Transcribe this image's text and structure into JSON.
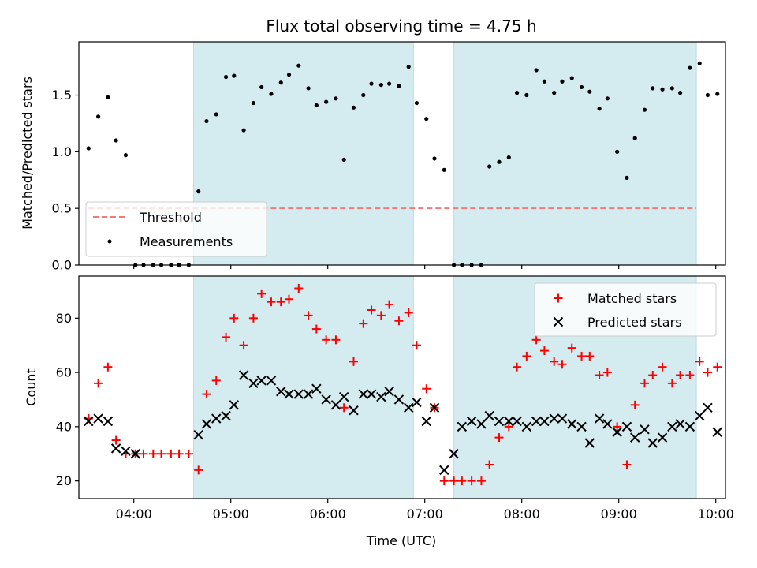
{
  "colors": {
    "shade": "#d4ebf0",
    "threshold": "#f27a7a",
    "measurement": "#000000",
    "matched": "#ff0000",
    "predicted": "#000000"
  },
  "chart_data": [
    {
      "type": "scatter",
      "title": "Flux total observing time = 4.75 h",
      "xlabel": "",
      "ylabel": "Matched/Predicted stars",
      "x_unit": "hours UTC",
      "xlim": [
        "03:26",
        "10:06"
      ],
      "ylim": [
        0,
        1.97
      ],
      "yticks": [
        0.0,
        0.5,
        1.0,
        1.5
      ],
      "ytick_labels": [
        "0.0",
        "0.5",
        "1.0",
        "1.5"
      ],
      "xticks": [
        "04:00",
        "05:00",
        "06:00",
        "07:00",
        "08:00",
        "09:00",
        "10:00"
      ],
      "shaded_intervals": [
        [
          "04:37",
          "06:53"
        ],
        [
          "07:18",
          "09:48"
        ]
      ],
      "grid": false,
      "legend_position": "lower-left",
      "series": [
        {
          "name": "Threshold",
          "style": "dashed-line",
          "x": [
            "03:32",
            "09:48"
          ],
          "y": [
            0.5,
            0.5
          ]
        },
        {
          "name": "Measurements",
          "style": "dot",
          "x": [
            "03:32",
            "03:38",
            "03:44",
            "03:49",
            "03:55",
            "04:01",
            "04:06",
            "04:12",
            "04:17",
            "04:23",
            "04:28",
            "04:34",
            "04:40",
            "04:45",
            "04:51",
            "04:57",
            "05:02",
            "05:08",
            "05:14",
            "05:19",
            "05:25",
            "05:31",
            "05:36",
            "05:42",
            "05:48",
            "05:53",
            "05:59",
            "06:05",
            "06:10",
            "06:16",
            "06:22",
            "06:27",
            "06:33",
            "06:38",
            "06:44",
            "06:50",
            "06:55",
            "07:01",
            "07:06",
            "07:12",
            "07:18",
            "07:23",
            "07:29",
            "07:35",
            "07:40",
            "07:46",
            "07:52",
            "07:57",
            "08:03",
            "08:09",
            "08:14",
            "08:20",
            "08:25",
            "08:31",
            "08:37",
            "08:42",
            "08:48",
            "08:53",
            "08:59",
            "09:05",
            "09:10",
            "09:16",
            "09:21",
            "09:27",
            "09:33",
            "09:38",
            "09:44",
            "09:50",
            "09:55",
            "10:01"
          ],
          "y": [
            1.03,
            1.31,
            1.48,
            1.1,
            0.97,
            0.0,
            0.0,
            0.0,
            0.0,
            0.0,
            0.0,
            0.0,
            0.65,
            1.27,
            1.33,
            1.66,
            1.67,
            1.19,
            1.43,
            1.57,
            1.51,
            1.61,
            1.68,
            1.76,
            1.56,
            1.41,
            1.44,
            1.47,
            0.93,
            1.39,
            1.5,
            1.6,
            1.59,
            1.6,
            1.58,
            1.75,
            1.43,
            1.29,
            0.94,
            0.84,
            0.0,
            0.0,
            0.0,
            0.0,
            0.87,
            0.91,
            0.95,
            1.52,
            1.5,
            1.72,
            1.62,
            1.52,
            1.62,
            1.65,
            1.57,
            1.53,
            1.38,
            1.47,
            1.0,
            0.77,
            1.12,
            1.37,
            1.56,
            1.55,
            1.56,
            1.52,
            1.74,
            1.78,
            1.5,
            1.51
          ]
        }
      ]
    },
    {
      "type": "scatter",
      "title": "",
      "xlabel": "Time (UTC)",
      "ylabel": "Count",
      "x_unit": "hours UTC",
      "xlim": [
        "03:26",
        "10:06"
      ],
      "ylim": [
        13.5,
        95.5
      ],
      "yticks": [
        20,
        40,
        60,
        80
      ],
      "ytick_labels": [
        "20",
        "40",
        "60",
        "80"
      ],
      "xticks": [
        "04:00",
        "05:00",
        "06:00",
        "07:00",
        "08:00",
        "09:00",
        "10:00"
      ],
      "xtick_labels": [
        "04:00",
        "05:00",
        "06:00",
        "07:00",
        "08:00",
        "09:00",
        "10:00"
      ],
      "shaded_intervals": [
        [
          "04:37",
          "06:53"
        ],
        [
          "07:18",
          "09:48"
        ]
      ],
      "grid": false,
      "legend_position": "upper-right",
      "series": [
        {
          "name": "Matched stars",
          "marker": "plus",
          "x": [
            "03:32",
            "03:38",
            "03:44",
            "03:49",
            "03:55",
            "04:01",
            "04:06",
            "04:12",
            "04:17",
            "04:23",
            "04:28",
            "04:34",
            "04:40",
            "04:45",
            "04:51",
            "04:57",
            "05:02",
            "05:08",
            "05:14",
            "05:19",
            "05:25",
            "05:31",
            "05:36",
            "05:42",
            "05:48",
            "05:53",
            "05:59",
            "06:05",
            "06:10",
            "06:16",
            "06:22",
            "06:27",
            "06:33",
            "06:38",
            "06:44",
            "06:50",
            "06:55",
            "07:01",
            "07:06",
            "07:12",
            "07:18",
            "07:23",
            "07:29",
            "07:35",
            "07:40",
            "07:46",
            "07:52",
            "07:57",
            "08:03",
            "08:09",
            "08:14",
            "08:20",
            "08:25",
            "08:31",
            "08:37",
            "08:42",
            "08:48",
            "08:53",
            "08:59",
            "09:05",
            "09:10",
            "09:16",
            "09:21",
            "09:27",
            "09:33",
            "09:38",
            "09:44",
            "09:50",
            "09:55",
            "10:01"
          ],
          "y": [
            43,
            56,
            62,
            35,
            30,
            30,
            30,
            30,
            30,
            30,
            30,
            30,
            24,
            52,
            57,
            73,
            80,
            70,
            80,
            89,
            86,
            86,
            87,
            91,
            81,
            76,
            72,
            72,
            47,
            64,
            78,
            83,
            81,
            85,
            79,
            82,
            70,
            54,
            47,
            20,
            20,
            20,
            20,
            20,
            26,
            36,
            40,
            62,
            66,
            72,
            68,
            64,
            63,
            69,
            66,
            66,
            59,
            60,
            40,
            26,
            48,
            56,
            59,
            62,
            56,
            59,
            59,
            64,
            60,
            62
          ]
        },
        {
          "name": "Predicted stars",
          "marker": "x",
          "x": [
            "03:32",
            "03:38",
            "03:44",
            "03:49",
            "03:55",
            "04:01",
            "04:40",
            "04:45",
            "04:51",
            "04:57",
            "05:02",
            "05:08",
            "05:14",
            "05:19",
            "05:25",
            "05:31",
            "05:36",
            "05:42",
            "05:48",
            "05:53",
            "05:59",
            "06:05",
            "06:10",
            "06:16",
            "06:22",
            "06:27",
            "06:33",
            "06:38",
            "06:44",
            "06:50",
            "06:55",
            "07:01",
            "07:06",
            "07:12",
            "07:18",
            "07:23",
            "07:29",
            "07:35",
            "07:40",
            "07:46",
            "07:52",
            "07:57",
            "08:03",
            "08:09",
            "08:14",
            "08:20",
            "08:25",
            "08:31",
            "08:37",
            "08:42",
            "08:48",
            "08:53",
            "08:59",
            "09:05",
            "09:10",
            "09:16",
            "09:21",
            "09:27",
            "09:33",
            "09:38",
            "09:44",
            "09:50",
            "09:55",
            "10:01"
          ],
          "y": [
            42,
            43,
            42,
            32,
            31,
            30,
            37,
            41,
            43,
            44,
            48,
            59,
            56,
            57,
            57,
            53,
            52,
            52,
            52,
            54,
            50,
            48,
            51,
            46,
            52,
            52,
            51,
            53,
            50,
            47,
            49,
            42,
            47,
            24,
            30,
            40,
            42,
            41,
            44,
            42,
            42,
            42,
            40,
            42,
            42,
            43,
            43,
            41,
            40,
            34,
            43,
            41,
            38,
            40,
            36,
            39,
            34,
            36,
            40,
            41,
            40,
            44,
            47,
            38
          ]
        }
      ]
    }
  ]
}
